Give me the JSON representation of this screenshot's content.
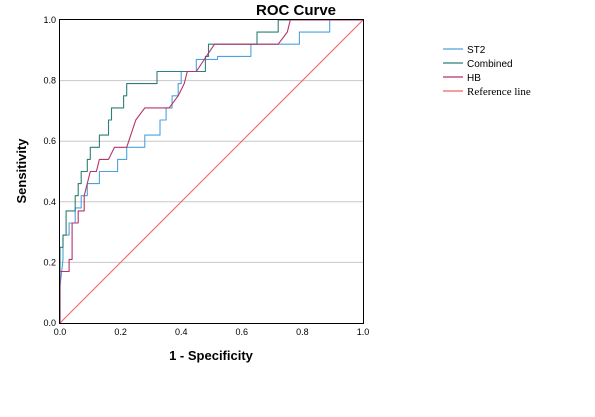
{
  "chart_data": {
    "type": "line",
    "title": "ROC Curve",
    "xlabel": "1 - Specificity",
    "ylabel": "Sensitivity",
    "xlim": [
      0,
      1
    ],
    "ylim": [
      0,
      1
    ],
    "xticks": [
      "0.0",
      "0.2",
      "0.4",
      "0.6",
      "0.8",
      "1.0"
    ],
    "yticks": [
      "0.0",
      "0.2",
      "0.4",
      "0.6",
      "0.8",
      "1.0"
    ],
    "grid": "horizontal",
    "legend_position": "right",
    "series": [
      {
        "name": "ST2",
        "color": "#4aa3df",
        "points": [
          [
            0,
            0
          ],
          [
            0,
            0.12
          ],
          [
            0.01,
            0.21
          ],
          [
            0.01,
            0.29
          ],
          [
            0.03,
            0.29
          ],
          [
            0.03,
            0.33
          ],
          [
            0.05,
            0.33
          ],
          [
            0.05,
            0.38
          ],
          [
            0.07,
            0.38
          ],
          [
            0.07,
            0.42
          ],
          [
            0.09,
            0.42
          ],
          [
            0.09,
            0.46
          ],
          [
            0.13,
            0.46
          ],
          [
            0.13,
            0.5
          ],
          [
            0.19,
            0.5
          ],
          [
            0.19,
            0.54
          ],
          [
            0.22,
            0.54
          ],
          [
            0.22,
            0.58
          ],
          [
            0.28,
            0.58
          ],
          [
            0.28,
            0.62
          ],
          [
            0.33,
            0.62
          ],
          [
            0.33,
            0.67
          ],
          [
            0.35,
            0.67
          ],
          [
            0.35,
            0.71
          ],
          [
            0.37,
            0.71
          ],
          [
            0.37,
            0.75
          ],
          [
            0.39,
            0.75
          ],
          [
            0.39,
            0.79
          ],
          [
            0.4,
            0.79
          ],
          [
            0.4,
            0.83
          ],
          [
            0.45,
            0.83
          ],
          [
            0.45,
            0.87
          ],
          [
            0.52,
            0.87
          ],
          [
            0.52,
            0.88
          ],
          [
            0.63,
            0.88
          ],
          [
            0.63,
            0.92
          ],
          [
            0.79,
            0.92
          ],
          [
            0.79,
            0.96
          ],
          [
            0.89,
            0.96
          ],
          [
            0.89,
            1
          ],
          [
            1,
            1
          ]
        ]
      },
      {
        "name": "Combined",
        "color": "#2e7f77",
        "points": [
          [
            0,
            0
          ],
          [
            0,
            0.25
          ],
          [
            0.01,
            0.25
          ],
          [
            0.01,
            0.29
          ],
          [
            0.02,
            0.29
          ],
          [
            0.02,
            0.37
          ],
          [
            0.05,
            0.37
          ],
          [
            0.05,
            0.42
          ],
          [
            0.06,
            0.42
          ],
          [
            0.06,
            0.46
          ],
          [
            0.07,
            0.46
          ],
          [
            0.07,
            0.5
          ],
          [
            0.09,
            0.5
          ],
          [
            0.09,
            0.54
          ],
          [
            0.1,
            0.54
          ],
          [
            0.1,
            0.58
          ],
          [
            0.13,
            0.58
          ],
          [
            0.13,
            0.62
          ],
          [
            0.16,
            0.62
          ],
          [
            0.16,
            0.67
          ],
          [
            0.17,
            0.67
          ],
          [
            0.17,
            0.71
          ],
          [
            0.21,
            0.71
          ],
          [
            0.21,
            0.75
          ],
          [
            0.22,
            0.75
          ],
          [
            0.22,
            0.79
          ],
          [
            0.32,
            0.79
          ],
          [
            0.32,
            0.83
          ],
          [
            0.48,
            0.83
          ],
          [
            0.48,
            0.88
          ],
          [
            0.49,
            0.88
          ],
          [
            0.49,
            0.92
          ],
          [
            0.65,
            0.92
          ],
          [
            0.65,
            0.96
          ],
          [
            0.72,
            0.96
          ],
          [
            0.72,
            1
          ],
          [
            1,
            1
          ]
        ]
      },
      {
        "name": "HB",
        "color": "#b5336b",
        "points": [
          [
            0,
            0
          ],
          [
            0,
            0.17
          ],
          [
            0.03,
            0.17
          ],
          [
            0.03,
            0.21
          ],
          [
            0.04,
            0.21
          ],
          [
            0.04,
            0.33
          ],
          [
            0.06,
            0.33
          ],
          [
            0.06,
            0.37
          ],
          [
            0.08,
            0.37
          ],
          [
            0.08,
            0.42
          ],
          [
            0.1,
            0.5
          ],
          [
            0.12,
            0.5
          ],
          [
            0.13,
            0.54
          ],
          [
            0.16,
            0.54
          ],
          [
            0.18,
            0.58
          ],
          [
            0.22,
            0.58
          ],
          [
            0.25,
            0.67
          ],
          [
            0.28,
            0.71
          ],
          [
            0.36,
            0.71
          ],
          [
            0.39,
            0.75
          ],
          [
            0.41,
            0.79
          ],
          [
            0.42,
            0.83
          ],
          [
            0.45,
            0.83
          ],
          [
            0.51,
            0.92
          ],
          [
            0.72,
            0.92
          ],
          [
            0.75,
            0.96
          ],
          [
            0.76,
            1
          ],
          [
            1,
            1
          ]
        ]
      },
      {
        "name": "Reference line",
        "color": "#ee6666",
        "points": [
          [
            0,
            0
          ],
          [
            1,
            1
          ]
        ]
      }
    ]
  }
}
